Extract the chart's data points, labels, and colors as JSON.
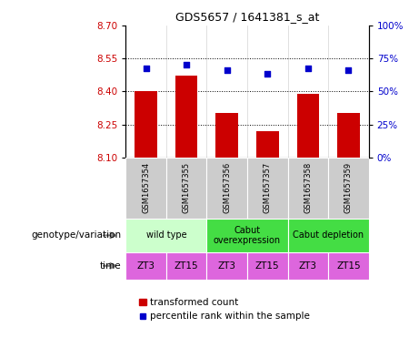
{
  "title": "GDS5657 / 1641381_s_at",
  "samples": [
    "GSM1657354",
    "GSM1657355",
    "GSM1657356",
    "GSM1657357",
    "GSM1657358",
    "GSM1657359"
  ],
  "bar_values": [
    8.4,
    8.47,
    8.3,
    8.22,
    8.39,
    8.3
  ],
  "bar_baseline": 8.1,
  "bar_color": "#cc0000",
  "percentile_values": [
    67,
    70,
    66,
    63,
    67,
    66
  ],
  "dot_color": "#0000cc",
  "ylim_left": [
    8.1,
    8.7
  ],
  "ylim_right": [
    0,
    100
  ],
  "yticks_left": [
    8.1,
    8.25,
    8.4,
    8.55,
    8.7
  ],
  "yticks_right": [
    0,
    25,
    50,
    75,
    100
  ],
  "grid_lines": [
    8.25,
    8.4,
    8.55
  ],
  "geno_groups": [
    {
      "label": "wild type",
      "start": 0,
      "end": 2,
      "color": "#ccffcc"
    },
    {
      "label": "Cabut\noverexpression",
      "start": 2,
      "end": 4,
      "color": "#44dd44"
    },
    {
      "label": "Cabut depletion",
      "start": 4,
      "end": 6,
      "color": "#44dd44"
    }
  ],
  "time_labels": [
    "ZT3",
    "ZT15",
    "ZT3",
    "ZT15",
    "ZT3",
    "ZT15"
  ],
  "time_color": "#dd66dd",
  "sample_bg_color": "#cccccc",
  "legend_bar_label": "transformed count",
  "legend_dot_label": "percentile rank within the sample",
  "left_label_color": "#cc0000",
  "right_label_color": "#0000cc",
  "genotype_label": "genotype/variation",
  "time_label": "time",
  "bar_width": 0.55
}
